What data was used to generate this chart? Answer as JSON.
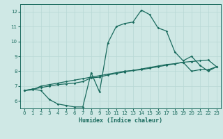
{
  "xlabel": "Humidex (Indice chaleur)",
  "bg_color": "#cfe8e5",
  "line_color": "#1a6b5e",
  "grid_color": "#b8d8d5",
  "xlim": [
    -0.5,
    23.5
  ],
  "ylim": [
    5.5,
    12.5
  ],
  "yticks": [
    6,
    7,
    8,
    9,
    10,
    11,
    12
  ],
  "xticks": [
    0,
    1,
    2,
    3,
    4,
    5,
    6,
    7,
    8,
    9,
    10,
    11,
    12,
    13,
    14,
    15,
    16,
    17,
    18,
    19,
    20,
    21,
    22,
    23
  ],
  "curve1_x": [
    0,
    1,
    2,
    3,
    4,
    5,
    6,
    7,
    8,
    9,
    10,
    11,
    12,
    13,
    14,
    15,
    16,
    17,
    18,
    19,
    20,
    21,
    22,
    23
  ],
  "curve1_y": [
    6.7,
    6.8,
    6.7,
    6.1,
    5.8,
    5.7,
    5.6,
    5.6,
    7.9,
    6.6,
    9.9,
    11.0,
    11.2,
    11.3,
    12.1,
    11.8,
    10.9,
    10.7,
    9.3,
    8.7,
    9.0,
    8.4,
    8.0,
    8.3
  ],
  "curve2_x": [
    0,
    1,
    2,
    3,
    4,
    5,
    6,
    7,
    8,
    9,
    10,
    11,
    12,
    13,
    14,
    15,
    16,
    17,
    18,
    19,
    20,
    21,
    22,
    23
  ],
  "curve2_y": [
    6.7,
    6.8,
    6.9,
    7.0,
    7.1,
    7.15,
    7.2,
    7.3,
    7.55,
    7.6,
    7.75,
    7.85,
    7.95,
    8.05,
    8.15,
    8.25,
    8.35,
    8.45,
    8.5,
    8.6,
    8.0,
    8.1,
    8.1,
    8.3
  ],
  "curve3_x": [
    0,
    1,
    2,
    3,
    4,
    5,
    6,
    7,
    8,
    9,
    10,
    11,
    12,
    13,
    14,
    15,
    16,
    17,
    18,
    19,
    20,
    21,
    22,
    23
  ],
  "curve3_y": [
    6.7,
    6.75,
    7.0,
    7.1,
    7.2,
    7.3,
    7.4,
    7.5,
    7.6,
    7.7,
    7.8,
    7.9,
    8.0,
    8.05,
    8.1,
    8.2,
    8.3,
    8.4,
    8.5,
    8.6,
    8.65,
    8.7,
    8.75,
    8.3
  ]
}
